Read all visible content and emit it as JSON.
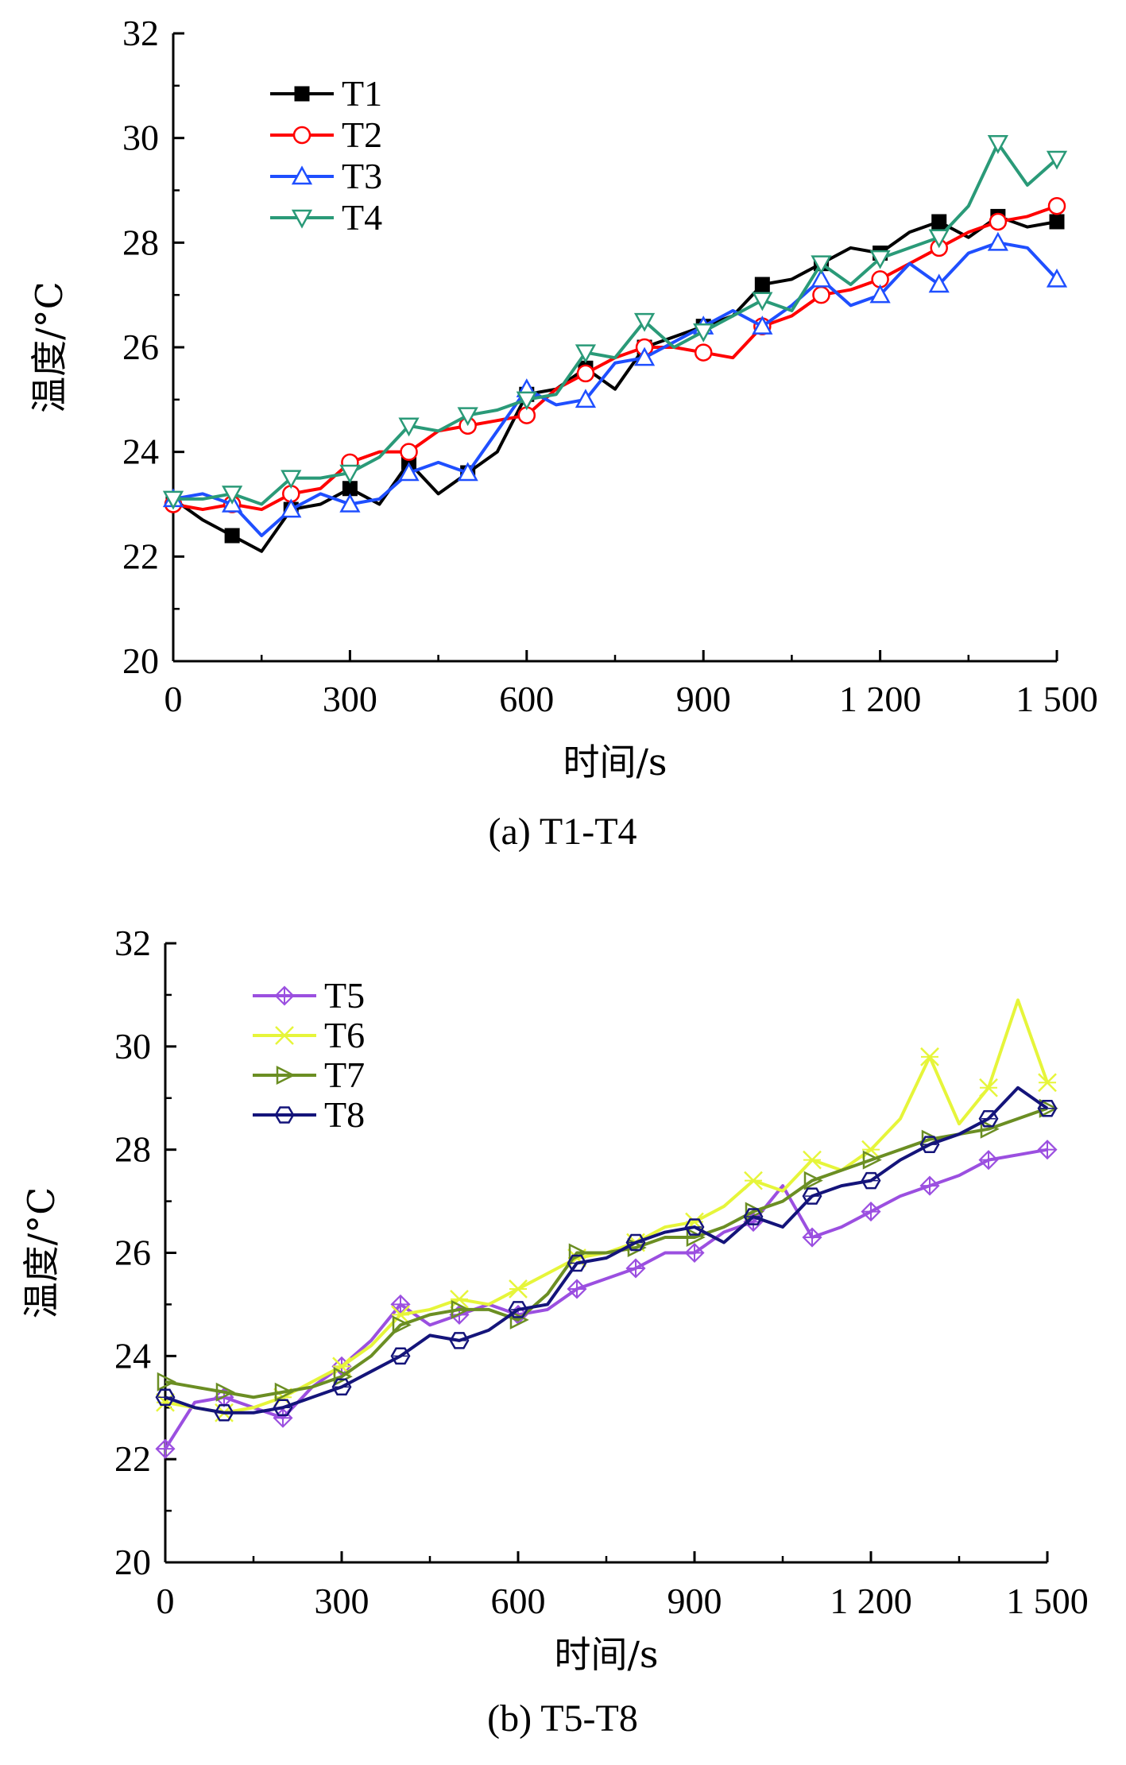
{
  "chart_data": [
    {
      "type": "line",
      "caption": "(a)  T1-T4",
      "xlabel": "时间/s",
      "ylabel": "温度/°C",
      "xlim": [
        0,
        1500
      ],
      "ylim": [
        20,
        32
      ],
      "xticks": [
        0,
        300,
        600,
        900,
        1200,
        1500
      ],
      "xtick_labels": [
        "0",
        "300",
        "600",
        "900",
        "1 200",
        "1 500"
      ],
      "yticks": [
        20,
        22,
        24,
        26,
        28,
        30,
        32
      ],
      "ytick_labels": [
        "20",
        "22",
        "24",
        "26",
        "28",
        "30",
        "32"
      ],
      "grid": false,
      "legend_position": "top-left",
      "x": [
        0,
        50,
        100,
        150,
        200,
        250,
        300,
        350,
        400,
        450,
        500,
        550,
        600,
        650,
        700,
        750,
        800,
        850,
        900,
        950,
        1000,
        1050,
        1100,
        1150,
        1200,
        1250,
        1300,
        1350,
        1400,
        1450,
        1500
      ],
      "series": [
        {
          "name": "T1",
          "color": "#000000",
          "marker": "square",
          "values": [
            23.1,
            22.7,
            22.4,
            22.1,
            22.9,
            23.0,
            23.3,
            23.0,
            23.8,
            23.2,
            23.6,
            24.0,
            25.1,
            25.2,
            25.6,
            25.2,
            26.0,
            26.2,
            26.4,
            26.6,
            27.2,
            27.3,
            27.6,
            27.9,
            27.8,
            28.2,
            28.4,
            28.1,
            28.5,
            28.3,
            28.4
          ]
        },
        {
          "name": "T2",
          "color": "#ff0000",
          "marker": "circle-open",
          "values": [
            23.0,
            22.9,
            23.0,
            22.9,
            23.2,
            23.3,
            23.8,
            24.0,
            24.0,
            24.4,
            24.5,
            24.6,
            24.7,
            25.2,
            25.5,
            25.8,
            26.0,
            26.0,
            25.9,
            25.8,
            26.4,
            26.6,
            27.0,
            27.1,
            27.3,
            27.6,
            27.9,
            28.2,
            28.4,
            28.5,
            28.7
          ]
        },
        {
          "name": "T3",
          "color": "#1f4fff",
          "marker": "triangle-up-open",
          "values": [
            23.1,
            23.2,
            23.0,
            22.4,
            22.9,
            23.2,
            23.0,
            23.1,
            23.6,
            23.8,
            23.6,
            24.4,
            25.2,
            24.9,
            25.0,
            25.7,
            25.8,
            26.1,
            26.4,
            26.7,
            26.4,
            26.8,
            27.3,
            26.8,
            27.0,
            27.6,
            27.2,
            27.8,
            28.0,
            27.9,
            27.3
          ]
        },
        {
          "name": "T4",
          "color": "#2a9a78",
          "marker": "triangle-down-open",
          "values": [
            23.1,
            23.1,
            23.2,
            23.0,
            23.5,
            23.5,
            23.6,
            23.9,
            24.5,
            24.4,
            24.7,
            24.8,
            25.0,
            25.1,
            25.9,
            25.8,
            26.5,
            26.0,
            26.3,
            26.6,
            26.9,
            26.7,
            27.6,
            27.2,
            27.7,
            27.9,
            28.1,
            28.7,
            29.9,
            29.1,
            29.6
          ]
        }
      ]
    },
    {
      "type": "line",
      "caption": "(b) T5-T8",
      "xlabel": "时间/s",
      "ylabel": "温度/°C",
      "xlim": [
        0,
        1500
      ],
      "ylim": [
        20,
        32
      ],
      "xticks": [
        0,
        300,
        600,
        900,
        1200,
        1500
      ],
      "xtick_labels": [
        "0",
        "300",
        "600",
        "900",
        "1 200",
        "1 500"
      ],
      "yticks": [
        20,
        22,
        24,
        26,
        28,
        30,
        32
      ],
      "ytick_labels": [
        "20",
        "22",
        "24",
        "26",
        "28",
        "30",
        "32"
      ],
      "grid": false,
      "legend_position": "top-left",
      "x": [
        0,
        50,
        100,
        150,
        200,
        250,
        300,
        350,
        400,
        450,
        500,
        550,
        600,
        650,
        700,
        750,
        800,
        850,
        900,
        950,
        1000,
        1050,
        1100,
        1150,
        1200,
        1250,
        1300,
        1350,
        1400,
        1450,
        1500
      ],
      "series": [
        {
          "name": "T5",
          "color": "#9b4fe0",
          "marker": "diamond-cross",
          "values": [
            22.2,
            23.1,
            23.2,
            23.0,
            22.8,
            23.4,
            23.8,
            24.3,
            25.0,
            24.6,
            24.8,
            25.0,
            24.8,
            24.9,
            25.3,
            25.5,
            25.7,
            26.0,
            26.0,
            26.4,
            26.6,
            27.3,
            26.3,
            26.5,
            26.8,
            27.1,
            27.3,
            27.5,
            27.8,
            27.9,
            28.0
          ]
        },
        {
          "name": "T6",
          "color": "#e6f53a",
          "marker": "cross-x",
          "values": [
            23.1,
            23.0,
            22.9,
            23.0,
            23.2,
            23.5,
            23.8,
            24.2,
            24.8,
            24.9,
            25.1,
            25.0,
            25.3,
            25.6,
            25.9,
            26.0,
            26.2,
            26.5,
            26.6,
            26.9,
            27.4,
            27.2,
            27.8,
            27.6,
            28.0,
            28.6,
            29.8,
            28.5,
            29.2,
            30.9,
            29.3
          ]
        },
        {
          "name": "T7",
          "color": "#6b8e23",
          "marker": "triangle-right-open",
          "values": [
            23.5,
            23.4,
            23.3,
            23.2,
            23.3,
            23.4,
            23.6,
            24.0,
            24.6,
            24.8,
            24.9,
            24.9,
            24.7,
            25.2,
            26.0,
            26.0,
            26.1,
            26.3,
            26.3,
            26.5,
            26.8,
            27.0,
            27.4,
            27.6,
            27.8,
            28.0,
            28.2,
            28.3,
            28.4,
            28.6,
            28.8
          ]
        },
        {
          "name": "T8",
          "color": "#14147a",
          "marker": "hexagon-open",
          "values": [
            23.2,
            23.0,
            22.9,
            22.9,
            23.0,
            23.2,
            23.4,
            23.7,
            24.0,
            24.4,
            24.3,
            24.5,
            24.9,
            25.0,
            25.8,
            25.9,
            26.2,
            26.4,
            26.5,
            26.2,
            26.7,
            26.5,
            27.1,
            27.3,
            27.4,
            27.8,
            28.1,
            28.3,
            28.6,
            29.2,
            28.8
          ]
        }
      ]
    }
  ]
}
